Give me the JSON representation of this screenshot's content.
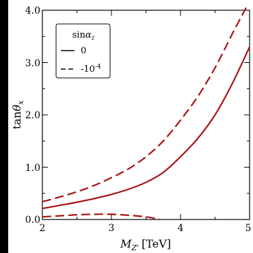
{
  "chart_data": {
    "type": "line",
    "title": "",
    "xlabel": "M_{Z'} [TeV]",
    "xlabel_main": "M",
    "xlabel_sub": "Z'",
    "xlabel_unit": "[TeV]",
    "ylabel": "tanθ_x",
    "ylabel_fn": "tan",
    "ylabel_sym": "θ",
    "ylabel_sub": "x",
    "xlim": [
      2,
      5
    ],
    "ylim": [
      0,
      4
    ],
    "x_ticks": [
      "2",
      "3",
      "4",
      "5"
    ],
    "y_ticks": [
      "0.0",
      "1.0",
      "2.0",
      "3.0",
      "4.0"
    ],
    "grid": false,
    "legend": {
      "placement": "top-left",
      "title": "sinα_z",
      "title_fn": "sin",
      "title_sym": "α",
      "title_sub": "z",
      "entries": [
        "0",
        "-10^{-4}"
      ],
      "entry2_base": "-10",
      "entry2_exp": "-4"
    },
    "series": [
      {
        "style": "solid",
        "color": "#aa1111",
        "x": [
          2.0,
          2.25,
          2.5,
          2.75,
          3.0,
          3.25,
          3.5,
          3.75,
          4.0,
          4.25,
          4.5,
          4.75,
          5.0
        ],
        "y": [
          0.21,
          0.27,
          0.33,
          0.4,
          0.48,
          0.58,
          0.71,
          0.9,
          1.2,
          1.55,
          2.0,
          2.6,
          3.3
        ]
      },
      {
        "style": "dashed",
        "color": "#aa1111",
        "x": [
          2.0,
          2.25,
          2.5,
          2.75,
          3.0,
          3.25,
          3.5,
          3.75,
          4.0,
          4.25,
          4.5,
          4.75,
          4.95
        ],
        "y": [
          0.34,
          0.43,
          0.53,
          0.65,
          0.8,
          0.97,
          1.2,
          1.5,
          1.9,
          2.35,
          2.9,
          3.55,
          4.05
        ]
      },
      {
        "style": "dashed",
        "color": "#aa1111",
        "x": [
          2.0,
          2.25,
          2.5,
          2.75,
          3.0,
          3.25,
          3.5,
          3.7
        ],
        "y": [
          0.05,
          0.07,
          0.09,
          0.1,
          0.1,
          0.08,
          0.05,
          0.0
        ]
      }
    ]
  }
}
